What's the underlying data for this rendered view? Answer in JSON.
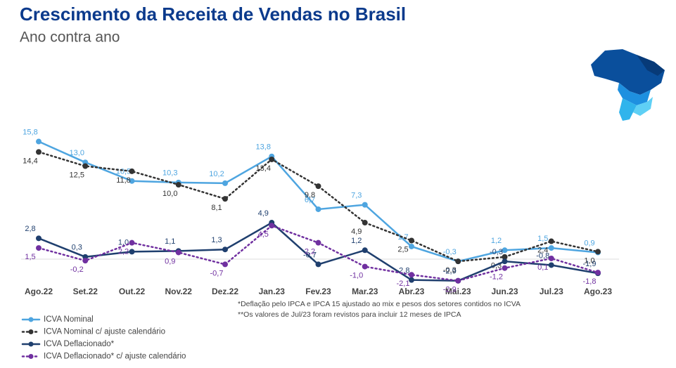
{
  "chart_data": {
    "type": "line",
    "title": "Crescimento da Receita de Vendas no Brasil",
    "subtitle": "Ano contra ano",
    "categories": [
      "Ago.22",
      "Set.22",
      "Out.22",
      "Nov.22",
      "Dez.22",
      "Jan.23",
      "Fev.23",
      "Mar.23",
      "Abr.23",
      "Mai.23",
      "Jun.23",
      "Jul.23",
      "Ago.23"
    ],
    "series": [
      {
        "name": "ICVA Nominal",
        "color": "#4ea5e0",
        "style": "solid",
        "values": [
          15.8,
          13.0,
          10.5,
          10.3,
          10.2,
          13.8,
          6.7,
          7.3,
          1.7,
          -0.3,
          1.2,
          1.5,
          0.9
        ],
        "value_labels": [
          "15,8",
          "13,0",
          "10,5",
          "10,3",
          "10,2",
          "13,8",
          "6,7",
          "7,3",
          "1,7",
          "-0,3",
          "1,2",
          "1,5",
          "0,9"
        ]
      },
      {
        "name": "ICVA Nominal c/ ajuste calendário",
        "color": "#333333",
        "style": "dotted",
        "values": [
          14.4,
          12.5,
          11.8,
          10.0,
          8.1,
          13.4,
          9.8,
          4.9,
          2.5,
          -0.3,
          0.3,
          2.4,
          1.0
        ],
        "value_labels": [
          "14,4",
          "12,5",
          "11,8",
          "10,0",
          "8,1",
          "13,4",
          "9,8",
          "4,9",
          "2,5",
          "-0,3",
          "0,3",
          "2,4",
          "1,0"
        ]
      },
      {
        "name": "ICVA Deflacionado*",
        "color": "#1f3f6e",
        "style": "solid",
        "values": [
          2.8,
          0.3,
          1.0,
          1.1,
          1.3,
          4.9,
          -0.7,
          1.2,
          -2.8,
          -2.9,
          -0.3,
          -0.8,
          -1.9
        ],
        "value_labels": [
          "2,8",
          "0,3",
          "1,0",
          "1,1",
          "1,3",
          "4,9",
          "-0,7",
          "1,2",
          "-2,8",
          "-2,9",
          "-0,3",
          "-0,8",
          "-1,9"
        ]
      },
      {
        "name": "ICVA Deflacionado* c/ ajuste calendário",
        "color": "#7030a0",
        "style": "dotted",
        "values": [
          1.5,
          -0.2,
          2.2,
          0.9,
          -0.7,
          4.5,
          2.2,
          -1.0,
          -2.1,
          -2.9,
          -1.2,
          0.1,
          -1.8
        ],
        "value_labels": [
          "1,5",
          "-0,2",
          "2,2",
          "0,9",
          "-0,7",
          "4,5",
          "2,2",
          "-1,0",
          "-2,1",
          "-2,9",
          "-1,2",
          "0,1",
          "-1,8"
        ]
      }
    ],
    "footnotes": [
      "*Deflação pelo IPCA e IPCA 15 ajustado ao mix e pesos dos setores contidos no ICVA",
      "**Os valores de Jul/23 foram revistos para incluir 12 meses de IPCA"
    ]
  }
}
